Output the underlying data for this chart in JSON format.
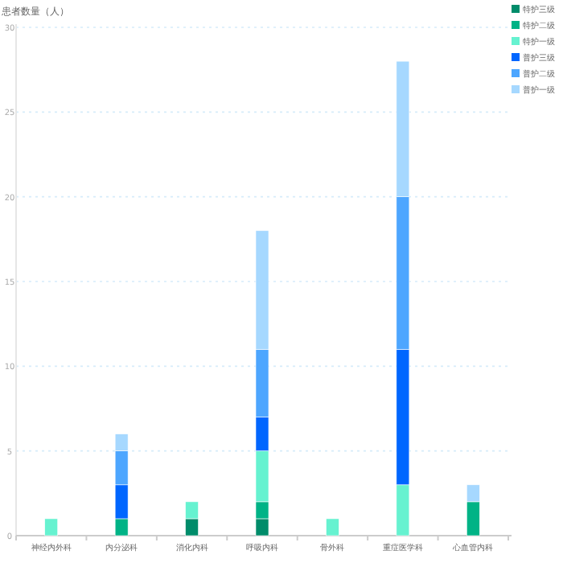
{
  "chart_data": {
    "type": "bar",
    "stacked": true,
    "ylabel": "患者数量（人）",
    "categories": [
      "神经内外科",
      "内分泌科",
      "消化内科",
      "呼吸内科",
      "骨外科",
      "重症医学科",
      "心血管内科"
    ],
    "series": [
      {
        "name": "特护三级",
        "color": "#008c6a",
        "values": [
          0,
          0,
          1,
          1,
          0,
          0,
          0
        ]
      },
      {
        "name": "特护二级",
        "color": "#00b386",
        "values": [
          0,
          1,
          0,
          1,
          0,
          0,
          2
        ]
      },
      {
        "name": "特护一级",
        "color": "#66f2d0",
        "values": [
          1,
          0,
          1,
          3,
          1,
          3,
          0
        ]
      },
      {
        "name": "普护三级",
        "color": "#0066ff",
        "values": [
          0,
          2,
          0,
          2,
          0,
          8,
          0
        ]
      },
      {
        "name": "普护二级",
        "color": "#4da6ff",
        "values": [
          0,
          2,
          0,
          4,
          0,
          9,
          0
        ]
      },
      {
        "name": "普护一级",
        "color": "#a6d8ff",
        "values": [
          0,
          1,
          0,
          7,
          0,
          8,
          1
        ]
      }
    ],
    "ylim": [
      0,
      30
    ],
    "yticks": [
      0,
      5,
      10,
      15,
      20,
      25,
      30
    ],
    "grid": "y",
    "legend": "top right"
  }
}
